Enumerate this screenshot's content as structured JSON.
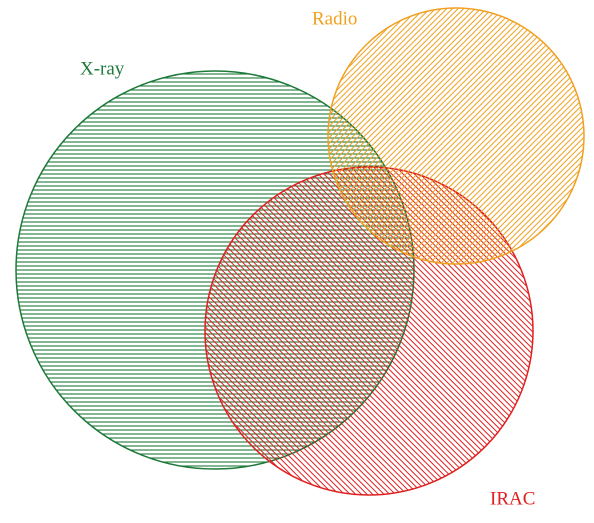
{
  "sets": [
    {
      "label": "X-ray",
      "color": "#1e7a3a"
    },
    {
      "label": "Radio",
      "color": "#f0a020"
    },
    {
      "label": "IRAC",
      "color": "#e02020"
    }
  ]
}
